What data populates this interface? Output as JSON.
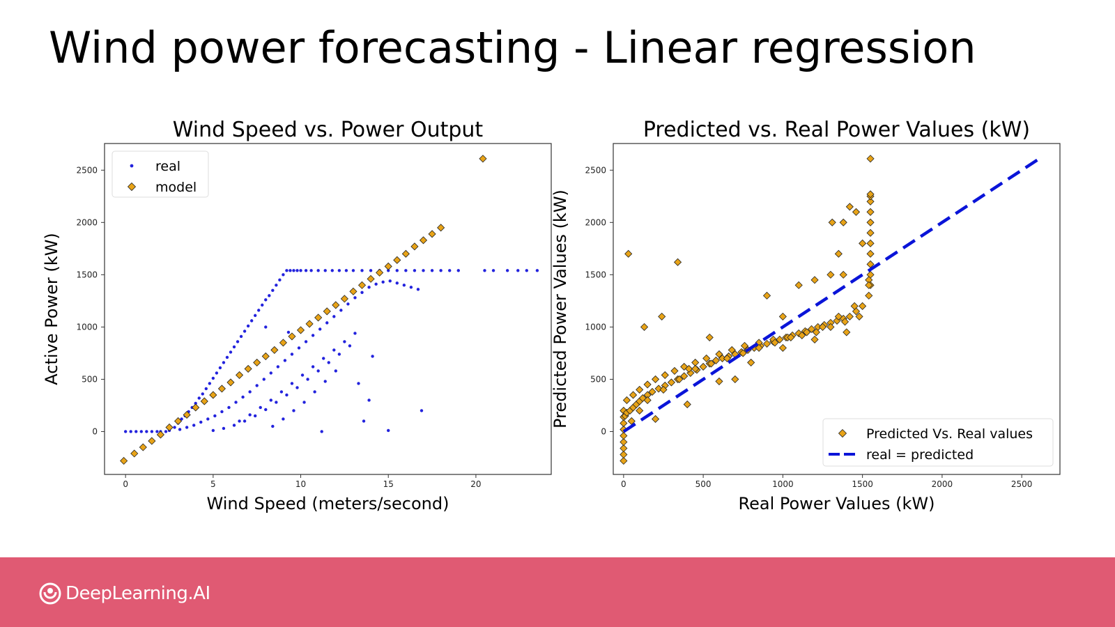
{
  "slide": {
    "title": "Wind power forecasting - Linear regression"
  },
  "footer": {
    "brand": "DeepLearning.AI",
    "background_color": "#e05a73",
    "logo_icon": "deeplearning-logo-icon"
  },
  "chart_data": [
    {
      "type": "scatter",
      "title": "Wind Speed vs. Power Output",
      "xlabel": "Wind Speed (meters/second)",
      "ylabel": "Active Power (kW)",
      "xlim": [
        -1.2,
        24.3
      ],
      "ylim": [
        -410,
        2755
      ],
      "xticks": [
        0,
        5,
        10,
        15,
        20
      ],
      "yticks": [
        0,
        500,
        1000,
        1500,
        2000,
        2500
      ],
      "grid": false,
      "legend_position": "top-left",
      "series": [
        {
          "name": "real",
          "marker": "point",
          "color": "#2222dd",
          "x": [
            0.0,
            0.3,
            0.6,
            0.9,
            1.2,
            1.5,
            1.8,
            2.0,
            2.3,
            2.5,
            2.8,
            3.0,
            3.2,
            3.4,
            3.6,
            3.8,
            4.0,
            4.2,
            4.4,
            4.6,
            4.8,
            5.0,
            5.2,
            5.4,
            5.6,
            5.8,
            6.0,
            6.2,
            6.4,
            6.6,
            6.8,
            7.0,
            7.2,
            7.4,
            7.6,
            7.8,
            8.0,
            8.2,
            8.4,
            8.6,
            8.8,
            9.0,
            9.2,
            9.4,
            9.6,
            9.8,
            10.0,
            10.3,
            10.6,
            11.0,
            11.4,
            11.8,
            12.2,
            12.6,
            13.0,
            13.5,
            14.0,
            14.5,
            15.0,
            15.5,
            16.0,
            16.5,
            17.0,
            17.5,
            18.0,
            18.5,
            19.0,
            20.5,
            21.0,
            21.8,
            22.4,
            22.9,
            23.5,
            3.1,
            3.5,
            3.9,
            4.3,
            4.7,
            5.1,
            5.5,
            5.9,
            6.3,
            6.7,
            7.1,
            7.5,
            7.9,
            8.3,
            8.7,
            9.1,
            9.5,
            9.9,
            10.3,
            10.7,
            11.1,
            11.5,
            11.9,
            12.3,
            12.7,
            13.1,
            13.5,
            13.9,
            14.3,
            14.7,
            15.1,
            15.5,
            15.9,
            16.3,
            16.7,
            5.0,
            5.6,
            6.2,
            6.8,
            7.4,
            8.0,
            8.6,
            9.2,
            9.8,
            10.4,
            11.0,
            11.6,
            12.2,
            12.8,
            6.5,
            7.1,
            7.7,
            8.3,
            8.9,
            9.5,
            10.1,
            10.7,
            11.3,
            11.9,
            12.5,
            13.1,
            8.4,
            9.0,
            9.6,
            10.2,
            10.8,
            11.4,
            12.0,
            13.3,
            13.9,
            14.1,
            11.2,
            15.0,
            16.9,
            13.6,
            8.0,
            9.3
          ],
          "y": [
            0,
            0,
            0,
            0,
            0,
            0,
            0,
            0,
            0,
            10,
            40,
            80,
            120,
            150,
            190,
            230,
            270,
            320,
            360,
            410,
            460,
            510,
            560,
            610,
            660,
            710,
            760,
            810,
            860,
            910,
            960,
            1010,
            1060,
            1110,
            1160,
            1210,
            1260,
            1300,
            1350,
            1400,
            1450,
            1500,
            1540,
            1540,
            1540,
            1540,
            1540,
            1540,
            1540,
            1540,
            1540,
            1540,
            1540,
            1540,
            1540,
            1540,
            1540,
            1540,
            1540,
            1540,
            1540,
            1540,
            1540,
            1540,
            1540,
            1540,
            1540,
            1540,
            1540,
            1540,
            1540,
            1540,
            1540,
            20,
            40,
            60,
            90,
            120,
            150,
            190,
            230,
            280,
            330,
            380,
            440,
            500,
            560,
            620,
            680,
            740,
            800,
            860,
            920,
            980,
            1040,
            1100,
            1160,
            1220,
            1280,
            1330,
            1380,
            1410,
            1430,
            1440,
            1420,
            1400,
            1380,
            1360,
            10,
            30,
            60,
            100,
            150,
            210,
            280,
            350,
            420,
            500,
            580,
            660,
            740,
            820,
            100,
            160,
            230,
            300,
            380,
            460,
            540,
            620,
            700,
            780,
            860,
            940,
            50,
            120,
            200,
            280,
            380,
            480,
            580,
            460,
            300,
            720,
            0,
            10,
            200,
            100,
            1000,
            950
          ],
          "note": "sampled representative points"
        },
        {
          "name": "model",
          "marker": "diamond",
          "color": "#e8a317",
          "x": [
            -0.1,
            0.5,
            1.0,
            1.5,
            2.0,
            2.5,
            3.0,
            3.5,
            4.0,
            4.5,
            5.0,
            5.5,
            6.0,
            6.5,
            7.0,
            7.5,
            8.0,
            8.5,
            9.0,
            9.5,
            10.0,
            10.5,
            11.0,
            11.5,
            12.0,
            12.5,
            13.0,
            13.5,
            14.0,
            14.5,
            15.0,
            15.5,
            16.0,
            16.5,
            17.0,
            17.5,
            18.0,
            20.4
          ],
          "y": [
            -280,
            -210,
            -150,
            -90,
            -30,
            40,
            100,
            160,
            230,
            290,
            350,
            410,
            470,
            540,
            600,
            660,
            720,
            780,
            850,
            910,
            970,
            1030,
            1090,
            1150,
            1210,
            1270,
            1340,
            1400,
            1460,
            1520,
            1580,
            1640,
            1700,
            1770,
            1830,
            1890,
            1950,
            2610
          ]
        }
      ]
    },
    {
      "type": "scatter",
      "title": "Predicted vs. Real Power Values (kW)",
      "xlabel": "Real Power Values (kW)",
      "ylabel": "Predicted Power Values (kW)",
      "xlim": [
        -65,
        2740
      ],
      "ylim": [
        -410,
        2755
      ],
      "xticks": [
        0,
        500,
        1000,
        1500,
        2000,
        2500
      ],
      "yticks": [
        0,
        500,
        1000,
        1500,
        2000,
        2500
      ],
      "grid": false,
      "legend_position": "bottom-right",
      "series": [
        {
          "name": "Predicted Vs. Real values",
          "marker": "diamond",
          "color": "#e8a317",
          "x": [
            0,
            0,
            0,
            0,
            0,
            0,
            0,
            0,
            0,
            10,
            20,
            40,
            60,
            80,
            100,
            120,
            150,
            180,
            220,
            260,
            300,
            340,
            380,
            420,
            460,
            500,
            540,
            580,
            620,
            660,
            700,
            740,
            780,
            820,
            860,
            900,
            940,
            980,
            1020,
            1060,
            1100,
            1140,
            1180,
            1220,
            1260,
            1300,
            1340,
            1380,
            1420,
            1460,
            1500,
            1540,
            1550,
            1550,
            1550,
            1550,
            1550,
            1550,
            1550,
            1550,
            1550,
            1550,
            1550,
            1550,
            20,
            60,
            100,
            150,
            200,
            260,
            320,
            380,
            450,
            520,
            600,
            680,
            760,
            850,
            940,
            1030,
            1120,
            1210,
            1300,
            1390,
            1480,
            30,
            130,
            240,
            340,
            410,
            540,
            700,
            900,
            1000,
            1100,
            1200,
            1300,
            1380,
            1420,
            1460,
            1310,
            1350,
            1380,
            1500,
            1540,
            50,
            100,
            150,
            250,
            350,
            450,
            550,
            650,
            750,
            850,
            950,
            1050,
            1150,
            1250,
            1350,
            1450,
            1540,
            200,
            400,
            600,
            800,
            1000,
            1200,
            1400
          ],
          "y": [
            -280,
            -220,
            -160,
            -100,
            -40,
            20,
            80,
            140,
            200,
            150,
            180,
            200,
            230,
            260,
            290,
            320,
            350,
            380,
            410,
            440,
            470,
            500,
            530,
            560,
            590,
            620,
            650,
            680,
            700,
            720,
            740,
            760,
            780,
            800,
            820,
            840,
            860,
            880,
            900,
            920,
            940,
            960,
            980,
            1000,
            1020,
            1040,
            1060,
            1080,
            1100,
            1150,
            1200,
            1300,
            1400,
            1500,
            1600,
            1700,
            1800,
            1900,
            2000,
            2100,
            2200,
            2250,
            2270,
            2610,
            300,
            350,
            400,
            450,
            500,
            540,
            580,
            620,
            660,
            700,
            740,
            780,
            820,
            850,
            880,
            900,
            920,
            950,
            1000,
            1050,
            1100,
            1700,
            1000,
            1100,
            1620,
            600,
            900,
            500,
            1300,
            1100,
            1400,
            1450,
            1500,
            2000,
            2150,
            2100,
            2000,
            1700,
            1500,
            1800,
            1450,
            100,
            200,
            300,
            400,
            500,
            600,
            650,
            700,
            750,
            800,
            850,
            900,
            950,
            1000,
            1100,
            1200,
            1400,
            120,
            260,
            480,
            660,
            800,
            880,
            950
          ]
        },
        {
          "name": "real = predicted",
          "type": "line",
          "style": "dashed",
          "color": "#0a14d8",
          "x": [
            0,
            2610
          ],
          "y": [
            0,
            2610
          ]
        }
      ]
    }
  ]
}
